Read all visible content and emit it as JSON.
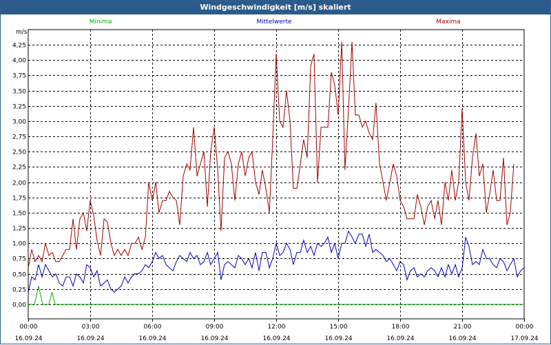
{
  "window": {
    "title": "Windgeschwindigkeit [m/s] skaliert"
  },
  "chart_data": {
    "type": "line",
    "title": "Windgeschwindigkeit [m/s] skaliert",
    "ylabel": "m/s",
    "xlabel": "",
    "ylim": [
      0,
      4.25
    ],
    "y_ticks": [
      "0,00",
      "0,25",
      "0,50",
      "0,75",
      "1,00",
      "1,25",
      "1,50",
      "1,75",
      "2,00",
      "2,25",
      "2,50",
      "2,75",
      "3,00",
      "3,25",
      "3,50",
      "3,75",
      "4,00",
      "4,25"
    ],
    "x_ticks": [
      {
        "time": "00:00",
        "date": "16.09.24"
      },
      {
        "time": "03:00",
        "date": "16.09.24"
      },
      {
        "time": "06:00",
        "date": "16.09.24"
      },
      {
        "time": "09:00",
        "date": "16.09.24"
      },
      {
        "time": "12:00",
        "date": "16.09.24"
      },
      {
        "time": "15:00",
        "date": "16.09.24"
      },
      {
        "time": "18:00",
        "date": "16.09.24"
      },
      {
        "time": "21:00",
        "date": "16.09.24"
      },
      {
        "time": "00:00",
        "date": "17.09.24"
      }
    ],
    "x_range_hours": [
      0,
      24
    ],
    "grid": true,
    "legend_placement": "top",
    "series": [
      {
        "name": "Minima",
        "color": "#00b000",
        "points": [
          [
            0,
            0
          ],
          [
            0.3,
            0
          ],
          [
            0.5,
            0.3
          ],
          [
            0.7,
            0
          ],
          [
            1.0,
            0
          ],
          [
            1.15,
            0.2
          ],
          [
            1.3,
            0
          ],
          [
            24,
            0
          ]
        ]
      },
      {
        "name": "Mittelwerte",
        "color": "#0000c0",
        "points": [
          [
            0,
            0.2
          ],
          [
            0.17,
            0.45
          ],
          [
            0.33,
            0.4
          ],
          [
            0.5,
            0.65
          ],
          [
            0.67,
            0.45
          ],
          [
            0.83,
            0.65
          ],
          [
            1.0,
            0.55
          ],
          [
            1.17,
            0.45
          ],
          [
            1.33,
            0.5
          ],
          [
            1.5,
            0.35
          ],
          [
            1.67,
            0.3
          ],
          [
            1.83,
            0.45
          ],
          [
            2.0,
            0.45
          ],
          [
            2.17,
            0.3
          ],
          [
            2.33,
            0.5
          ],
          [
            2.5,
            0.45
          ],
          [
            2.67,
            0.35
          ],
          [
            2.83,
            0.65
          ],
          [
            3.0,
            0.6
          ],
          [
            3.17,
            0.45
          ],
          [
            3.33,
            0.55
          ],
          [
            3.5,
            0.3
          ],
          [
            3.67,
            0.35
          ],
          [
            3.83,
            0.4
          ],
          [
            4.0,
            0.25
          ],
          [
            4.17,
            0.2
          ],
          [
            4.33,
            0.25
          ],
          [
            4.5,
            0.3
          ],
          [
            4.67,
            0.45
          ],
          [
            4.83,
            0.35
          ],
          [
            5.0,
            0.45
          ],
          [
            5.17,
            0.5
          ],
          [
            5.33,
            0.5
          ],
          [
            5.5,
            0.55
          ],
          [
            5.67,
            0.65
          ],
          [
            5.83,
            0.6
          ],
          [
            6.0,
            0.7
          ],
          [
            6.17,
            0.85
          ],
          [
            6.33,
            0.75
          ],
          [
            6.5,
            0.8
          ],
          [
            6.67,
            0.65
          ],
          [
            6.83,
            0.6
          ],
          [
            7.0,
            0.55
          ],
          [
            7.17,
            0.7
          ],
          [
            7.33,
            0.8
          ],
          [
            7.5,
            0.75
          ],
          [
            7.67,
            0.7
          ],
          [
            7.83,
            0.85
          ],
          [
            8.0,
            0.75
          ],
          [
            8.17,
            0.8
          ],
          [
            8.33,
            0.65
          ],
          [
            8.5,
            0.7
          ],
          [
            8.67,
            0.85
          ],
          [
            8.83,
            0.65
          ],
          [
            9.0,
            0.75
          ],
          [
            9.17,
            0.85
          ],
          [
            9.33,
            0.4
          ],
          [
            9.5,
            0.65
          ],
          [
            9.67,
            0.7
          ],
          [
            9.83,
            0.65
          ],
          [
            10.0,
            0.6
          ],
          [
            10.17,
            0.8
          ],
          [
            10.33,
            0.75
          ],
          [
            10.5,
            0.65
          ],
          [
            10.67,
            0.75
          ],
          [
            10.83,
            0.6
          ],
          [
            11.0,
            0.85
          ],
          [
            11.17,
            0.55
          ],
          [
            11.33,
            0.85
          ],
          [
            11.5,
            0.85
          ],
          [
            11.67,
            0.6
          ],
          [
            11.83,
            0.75
          ],
          [
            12.0,
            1.0
          ],
          [
            12.17,
            0.8
          ],
          [
            12.33,
            0.85
          ],
          [
            12.5,
            1.0
          ],
          [
            12.67,
            0.9
          ],
          [
            12.83,
            0.65
          ],
          [
            13.0,
            0.85
          ],
          [
            13.17,
            0.85
          ],
          [
            13.33,
            1.05
          ],
          [
            13.5,
            0.85
          ],
          [
            13.67,
            0.95
          ],
          [
            13.83,
            0.8
          ],
          [
            14.0,
            1.0
          ],
          [
            14.17,
            0.95
          ],
          [
            14.33,
            1.0
          ],
          [
            14.5,
            1.1
          ],
          [
            14.67,
            0.85
          ],
          [
            14.83,
            1.0
          ],
          [
            15.0,
            0.75
          ],
          [
            15.17,
            1.0
          ],
          [
            15.33,
            1.0
          ],
          [
            15.5,
            1.2
          ],
          [
            15.67,
            1.1
          ],
          [
            15.83,
            1.0
          ],
          [
            16.0,
            1.15
          ],
          [
            16.17,
            1.15
          ],
          [
            16.33,
            0.95
          ],
          [
            16.5,
            1.15
          ],
          [
            16.67,
            0.85
          ],
          [
            16.83,
            0.9
          ],
          [
            17.0,
            0.85
          ],
          [
            17.17,
            0.8
          ],
          [
            17.33,
            0.7
          ],
          [
            17.5,
            0.75
          ],
          [
            17.67,
            0.65
          ],
          [
            17.83,
            0.55
          ],
          [
            18.0,
            0.7
          ],
          [
            18.17,
            0.65
          ],
          [
            18.33,
            0.4
          ],
          [
            18.5,
            0.55
          ],
          [
            18.67,
            0.6
          ],
          [
            18.83,
            0.45
          ],
          [
            19.0,
            0.5
          ],
          [
            19.17,
            0.45
          ],
          [
            19.33,
            0.55
          ],
          [
            19.5,
            0.6
          ],
          [
            19.67,
            0.55
          ],
          [
            19.83,
            0.45
          ],
          [
            20.0,
            0.6
          ],
          [
            20.17,
            0.45
          ],
          [
            20.33,
            0.65
          ],
          [
            20.5,
            0.5
          ],
          [
            20.67,
            0.65
          ],
          [
            20.83,
            0.45
          ],
          [
            21.0,
            0.6
          ],
          [
            21.17,
            1.1
          ],
          [
            21.33,
            0.95
          ],
          [
            21.5,
            0.65
          ],
          [
            21.67,
            0.7
          ],
          [
            21.83,
            0.65
          ],
          [
            22.0,
            0.9
          ],
          [
            22.17,
            0.75
          ],
          [
            22.33,
            0.75
          ],
          [
            22.5,
            0.65
          ],
          [
            22.67,
            0.6
          ],
          [
            22.83,
            0.75
          ],
          [
            23.0,
            0.7
          ],
          [
            23.17,
            0.55
          ],
          [
            23.33,
            0.65
          ],
          [
            23.5,
            0.75
          ],
          [
            23.67,
            0.45
          ],
          [
            23.83,
            0.55
          ],
          [
            24.0,
            0.6
          ]
        ]
      },
      {
        "name": "Maxima",
        "color": "#a00000",
        "points": [
          [
            0,
            0.6
          ],
          [
            0.17,
            0.9
          ],
          [
            0.33,
            0.7
          ],
          [
            0.5,
            0.8
          ],
          [
            0.67,
            0.7
          ],
          [
            0.83,
            1.0
          ],
          [
            1.0,
            0.8
          ],
          [
            1.17,
            0.85
          ],
          [
            1.33,
            0.7
          ],
          [
            1.5,
            0.7
          ],
          [
            1.67,
            0.8
          ],
          [
            1.83,
            0.9
          ],
          [
            2.0,
            0.9
          ],
          [
            2.17,
            1.4
          ],
          [
            2.33,
            0.9
          ],
          [
            2.5,
            1.4
          ],
          [
            2.67,
            1.5
          ],
          [
            2.83,
            1.2
          ],
          [
            3.0,
            1.7
          ],
          [
            3.17,
            1.45
          ],
          [
            3.33,
            1.05
          ],
          [
            3.5,
            0.8
          ],
          [
            3.67,
            1.4
          ],
          [
            3.83,
            1.35
          ],
          [
            4.0,
            1.0
          ],
          [
            4.17,
            0.8
          ],
          [
            4.33,
            0.9
          ],
          [
            4.5,
            0.8
          ],
          [
            4.67,
            0.9
          ],
          [
            4.83,
            0.8
          ],
          [
            5.0,
            1.0
          ],
          [
            5.17,
            1.0
          ],
          [
            5.33,
            1.1
          ],
          [
            5.5,
            0.9
          ],
          [
            5.67,
            1.1
          ],
          [
            5.83,
            2.0
          ],
          [
            6.0,
            1.7
          ],
          [
            6.17,
            2.0
          ],
          [
            6.33,
            1.5
          ],
          [
            6.5,
            1.7
          ],
          [
            6.67,
            1.7
          ],
          [
            6.83,
            1.85
          ],
          [
            7.0,
            1.75
          ],
          [
            7.17,
            1.7
          ],
          [
            7.33,
            1.3
          ],
          [
            7.5,
            2.1
          ],
          [
            7.67,
            2.3
          ],
          [
            7.83,
            2.2
          ],
          [
            8.0,
            2.9
          ],
          [
            8.17,
            2.1
          ],
          [
            8.33,
            2.3
          ],
          [
            8.5,
            2.5
          ],
          [
            8.67,
            1.6
          ],
          [
            8.83,
            2.5
          ],
          [
            9.0,
            2.9
          ],
          [
            9.17,
            2.2
          ],
          [
            9.33,
            1.2
          ],
          [
            9.5,
            2.4
          ],
          [
            9.67,
            2.5
          ],
          [
            9.83,
            2.3
          ],
          [
            10.0,
            1.7
          ],
          [
            10.17,
            2.3
          ],
          [
            10.33,
            2.5
          ],
          [
            10.5,
            2.1
          ],
          [
            10.67,
            2.4
          ],
          [
            10.83,
            2.5
          ],
          [
            11.0,
            2.0
          ],
          [
            11.17,
            1.8
          ],
          [
            11.33,
            2.2
          ],
          [
            11.5,
            1.9
          ],
          [
            11.67,
            1.5
          ],
          [
            11.83,
            2.7
          ],
          [
            12.0,
            4.1
          ],
          [
            12.17,
            3.0
          ],
          [
            12.33,
            2.9
          ],
          [
            12.5,
            3.5
          ],
          [
            12.67,
            3.0
          ],
          [
            12.83,
            1.9
          ],
          [
            13.0,
            1.9
          ],
          [
            13.17,
            2.3
          ],
          [
            13.33,
            2.7
          ],
          [
            13.5,
            2.4
          ],
          [
            13.67,
            3.9
          ],
          [
            13.83,
            4.1
          ],
          [
            14.0,
            2.0
          ],
          [
            14.17,
            2.9
          ],
          [
            14.33,
            2.9
          ],
          [
            14.5,
            2.9
          ],
          [
            14.67,
            3.8
          ],
          [
            14.83,
            3.6
          ],
          [
            15.0,
            3.1
          ],
          [
            15.17,
            4.3
          ],
          [
            15.33,
            2.2
          ],
          [
            15.5,
            3.2
          ],
          [
            15.67,
            4.3
          ],
          [
            15.83,
            3.1
          ],
          [
            16.0,
            3.1
          ],
          [
            16.17,
            2.9
          ],
          [
            16.33,
            3.0
          ],
          [
            16.5,
            2.8
          ],
          [
            16.67,
            2.7
          ],
          [
            16.83,
            3.3
          ],
          [
            17.0,
            2.3
          ],
          [
            17.17,
            2.0
          ],
          [
            17.33,
            1.7
          ],
          [
            17.5,
            2.0
          ],
          [
            17.67,
            2.3
          ],
          [
            17.83,
            2.1
          ],
          [
            18.0,
            1.7
          ],
          [
            18.17,
            1.6
          ],
          [
            18.33,
            1.4
          ],
          [
            18.5,
            1.4
          ],
          [
            18.67,
            1.4
          ],
          [
            18.83,
            1.8
          ],
          [
            19.0,
            1.6
          ],
          [
            19.17,
            1.3
          ],
          [
            19.33,
            1.6
          ],
          [
            19.5,
            1.7
          ],
          [
            19.67,
            1.4
          ],
          [
            19.83,
            1.7
          ],
          [
            20.0,
            1.3
          ],
          [
            20.17,
            2.0
          ],
          [
            20.33,
            1.7
          ],
          [
            20.5,
            2.2
          ],
          [
            20.67,
            1.7
          ],
          [
            20.83,
            2.0
          ],
          [
            21.0,
            3.2
          ],
          [
            21.17,
            2.0
          ],
          [
            21.33,
            1.7
          ],
          [
            21.5,
            2.4
          ],
          [
            21.67,
            2.8
          ],
          [
            21.83,
            2.1
          ],
          [
            22.0,
            2.3
          ],
          [
            22.17,
            1.5
          ],
          [
            22.33,
            1.8
          ],
          [
            22.5,
            2.2
          ],
          [
            22.67,
            1.7
          ],
          [
            22.83,
            1.7
          ],
          [
            23.0,
            2.4
          ],
          [
            23.17,
            1.3
          ],
          [
            23.33,
            1.5
          ],
          [
            23.5,
            2.3
          ]
        ]
      }
    ]
  }
}
